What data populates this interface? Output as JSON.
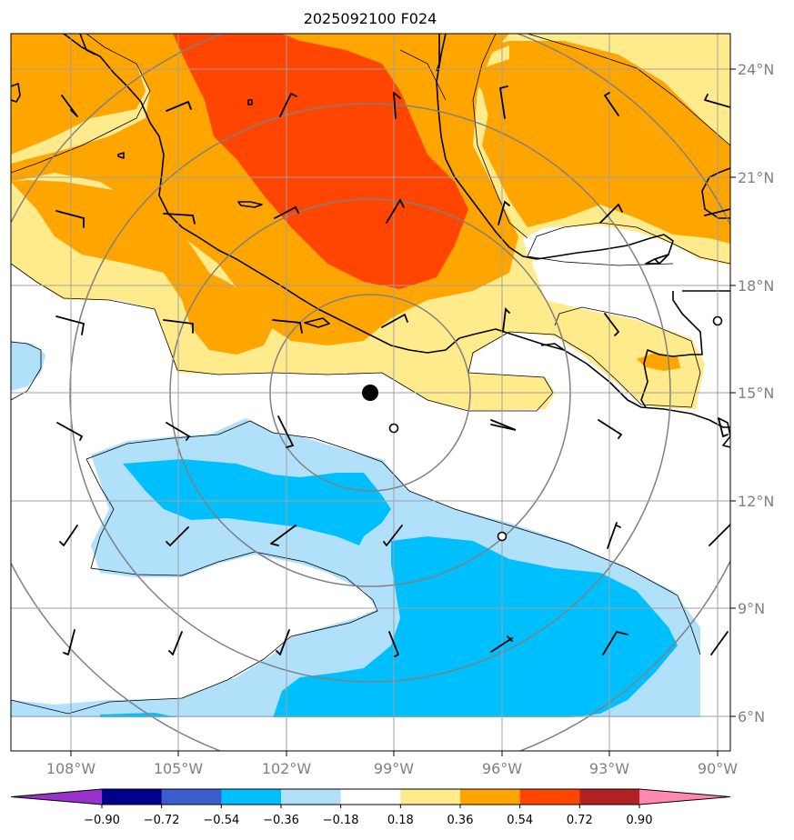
{
  "title": "2025092100 F024",
  "latitude_labels": [
    "24°N",
    "21°N",
    "18°N",
    "15°N",
    "12°N",
    "9°N",
    "6°N"
  ],
  "longitude_labels": [
    "108°W",
    "105°W",
    "102°W",
    "99°W",
    "96°W",
    "93°W",
    "90°W"
  ],
  "colorbar": {
    "labels": [
      "−0.90",
      "−0.72",
      "−0.54",
      "−0.36",
      "−0.18",
      "0.18",
      "0.36",
      "0.54",
      "0.72",
      "0.90"
    ],
    "colors": [
      "#9932cc",
      "#00008b",
      "#3a5fcd",
      "#00bfff",
      "#b0e0fa",
      "#ffffff",
      "#ffeb8c",
      "#ffa500",
      "#ff4500",
      "#b22222",
      "#ff88b0"
    ]
  },
  "fill_colors": {
    "neg_light": "#b0e0fa",
    "neg_mid": "#00bfff",
    "pos_light": "#ffeb8c",
    "pos_mid": "#ffa500",
    "pos_strong": "#ff4500"
  },
  "markers": {
    "storm_center": "filled-black-dot",
    "stations": [
      "open-circle",
      "open-circle",
      "open-circle"
    ]
  }
}
